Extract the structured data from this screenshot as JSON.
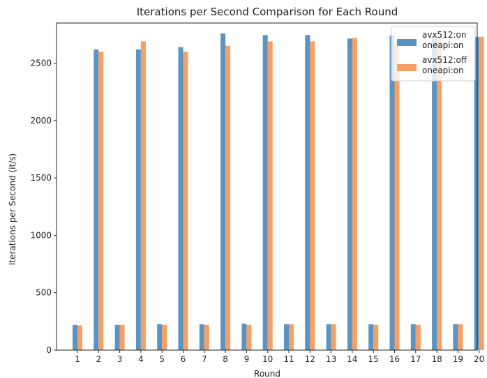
{
  "chart_data": {
    "type": "bar",
    "title": "Iterations per Second Comparison for Each Round",
    "xlabel": "Round",
    "ylabel": "Iterations per Second (it/s)",
    "ylim": [
      0,
      2850
    ],
    "yticks": [
      0,
      500,
      1000,
      1500,
      2000,
      2500
    ],
    "categories": [
      "1",
      "2",
      "3",
      "4",
      "5",
      "6",
      "7",
      "8",
      "9",
      "10",
      "11",
      "12",
      "13",
      "14",
      "15",
      "16",
      "17",
      "18",
      "19",
      "20"
    ],
    "series": [
      {
        "name": "avx512:on\noneapi:on",
        "color": "#5b93c2",
        "values": [
          220,
          2620,
          220,
          2620,
          225,
          2640,
          225,
          2760,
          230,
          2745,
          225,
          2745,
          225,
          2715,
          225,
          2740,
          225,
          2740,
          225,
          2730
        ]
      },
      {
        "name": "avx512:off\noneapi:on",
        "color": "#f8a064",
        "values": [
          215,
          2600,
          220,
          2690,
          220,
          2600,
          220,
          2650,
          220,
          2690,
          225,
          2690,
          225,
          2720,
          220,
          2690,
          220,
          2730,
          225,
          2730
        ]
      }
    ],
    "grid": false,
    "legend": "top-right"
  }
}
